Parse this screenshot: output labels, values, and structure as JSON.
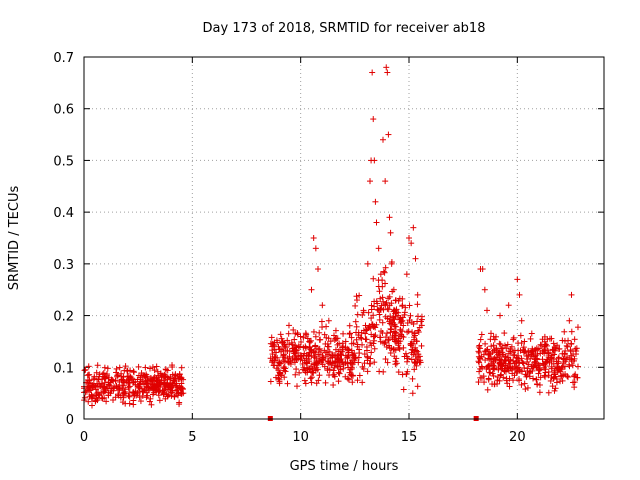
{
  "chart_data": {
    "type": "scatter",
    "title": "Day 173 of 2018, SRMTID for receiver ab18",
    "xlabel": "GPS time / hours",
    "ylabel": "SRMTID / TECUs",
    "xlim": [
      0,
      24
    ],
    "ylim": [
      0,
      0.7
    ],
    "x_ticks": [
      "0",
      "5",
      "10",
      "15",
      "20"
    ],
    "y_ticks": [
      "0",
      "0.1",
      "0.2",
      "0.3",
      "0.4",
      "0.5",
      "0.6",
      "0.7"
    ],
    "color": "#e00000",
    "marker": "+",
    "grid": true,
    "legend": "none",
    "segments": [
      {
        "from": 0.0,
        "to": 4.6,
        "base": 0.065,
        "spread": 0.03
      },
      {
        "from": 8.6,
        "to": 12.5,
        "base": 0.12,
        "spread": 0.05
      },
      {
        "from": 12.5,
        "to": 15.6,
        "base": 0.15,
        "spread": 0.08
      },
      {
        "from": 18.2,
        "to": 22.8,
        "base": 0.11,
        "spread": 0.05
      }
    ],
    "series": [
      {
        "name": "SRMTID",
        "points": [
          [
            10.6,
            0.35
          ],
          [
            10.7,
            0.33
          ],
          [
            10.8,
            0.29
          ],
          [
            10.5,
            0.25
          ],
          [
            11.0,
            0.22
          ],
          [
            11.3,
            0.19
          ],
          [
            12.6,
            0.23
          ],
          [
            12.9,
            0.21
          ],
          [
            13.1,
            0.3
          ],
          [
            13.2,
            0.46
          ],
          [
            13.25,
            0.5
          ],
          [
            13.3,
            0.67
          ],
          [
            13.35,
            0.58
          ],
          [
            13.4,
            0.5
          ],
          [
            13.45,
            0.42
          ],
          [
            13.5,
            0.38
          ],
          [
            13.6,
            0.33
          ],
          [
            13.7,
            0.28
          ],
          [
            13.8,
            0.54
          ],
          [
            13.9,
            0.46
          ],
          [
            13.95,
            0.68
          ],
          [
            14.0,
            0.67
          ],
          [
            14.05,
            0.55
          ],
          [
            14.1,
            0.39
          ],
          [
            14.15,
            0.36
          ],
          [
            14.2,
            0.3
          ],
          [
            14.3,
            0.25
          ],
          [
            14.5,
            0.2
          ],
          [
            14.7,
            0.22
          ],
          [
            14.9,
            0.28
          ],
          [
            15.0,
            0.35
          ],
          [
            15.1,
            0.34
          ],
          [
            15.2,
            0.37
          ],
          [
            15.3,
            0.31
          ],
          [
            15.4,
            0.24
          ],
          [
            18.3,
            0.29
          ],
          [
            18.4,
            0.29
          ],
          [
            18.5,
            0.25
          ],
          [
            18.6,
            0.21
          ],
          [
            19.2,
            0.2
          ],
          [
            19.6,
            0.22
          ],
          [
            20.0,
            0.27
          ],
          [
            20.1,
            0.24
          ],
          [
            20.2,
            0.19
          ],
          [
            22.5,
            0.24
          ],
          [
            22.4,
            0.19
          ]
        ]
      }
    ],
    "flag_markers": [
      8.6,
      18.1
    ]
  }
}
